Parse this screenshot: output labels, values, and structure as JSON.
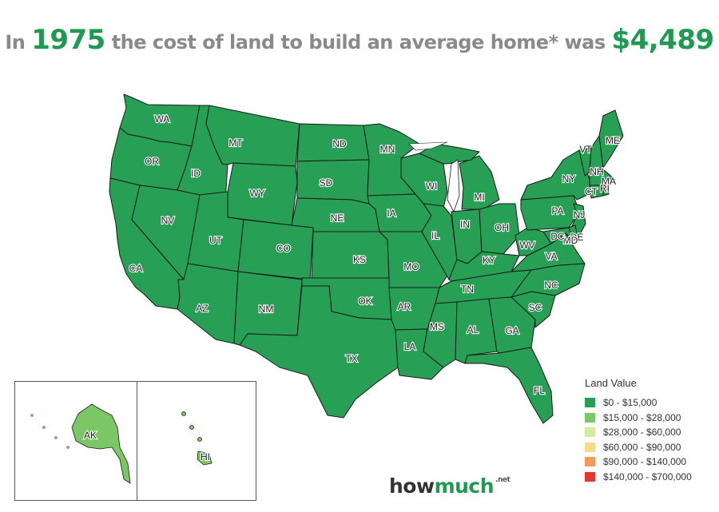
{
  "title": {
    "prefix": "In",
    "year": "1975",
    "middle": "the cost of land to build an average home* was",
    "amount": "$4,489"
  },
  "legend": {
    "title": "Land Value",
    "items": [
      {
        "label": "$0 - $15,000",
        "color": "#27a055"
      },
      {
        "label": "$15,000 - $28,000",
        "color": "#7cc765"
      },
      {
        "label": "$28,000 - $60,000",
        "color": "#d3ec9f"
      },
      {
        "label": "$60,000 - $90,000",
        "color": "#fbd98a"
      },
      {
        "label": "$90,000 - $140,000",
        "color": "#f59a5b"
      },
      {
        "label": "$140,000 - $700,000",
        "color": "#e03a2f"
      }
    ]
  },
  "states": {
    "WA": "WA",
    "OR": "OR",
    "CA": "CA",
    "ID": "ID",
    "NV": "NV",
    "MT": "MT",
    "WY": "WY",
    "UT": "UT",
    "AZ": "AZ",
    "CO": "CO",
    "NM": "NM",
    "ND": "ND",
    "SD": "SD",
    "NE": "NE",
    "KS": "KS",
    "OK": "OK",
    "TX": "TX",
    "MN": "MN",
    "IA": "IA",
    "MO": "MO",
    "AR": "AR",
    "LA": "LA",
    "WI": "WI",
    "IL": "IL",
    "MI": "MI",
    "IN": "IN",
    "OH": "OH",
    "KY": "KY",
    "TN": "TN",
    "MS": "MS",
    "AL": "AL",
    "GA": "GA",
    "FL": "FL",
    "SC": "SC",
    "NC": "NC",
    "VA": "VA",
    "WV": "WV",
    "PA": "PA",
    "NY": "NY",
    "VT": "VT",
    "NH": "NH",
    "ME": "ME",
    "MA": "MA",
    "RI": "RI",
    "CT": "CT",
    "NJ": "NJ",
    "DE": "DE",
    "MD": "MD",
    "DC": "DC",
    "AK": "AK",
    "HI": "HI"
  },
  "brand": {
    "how": "how",
    "much": "much",
    "net": ".net"
  }
}
